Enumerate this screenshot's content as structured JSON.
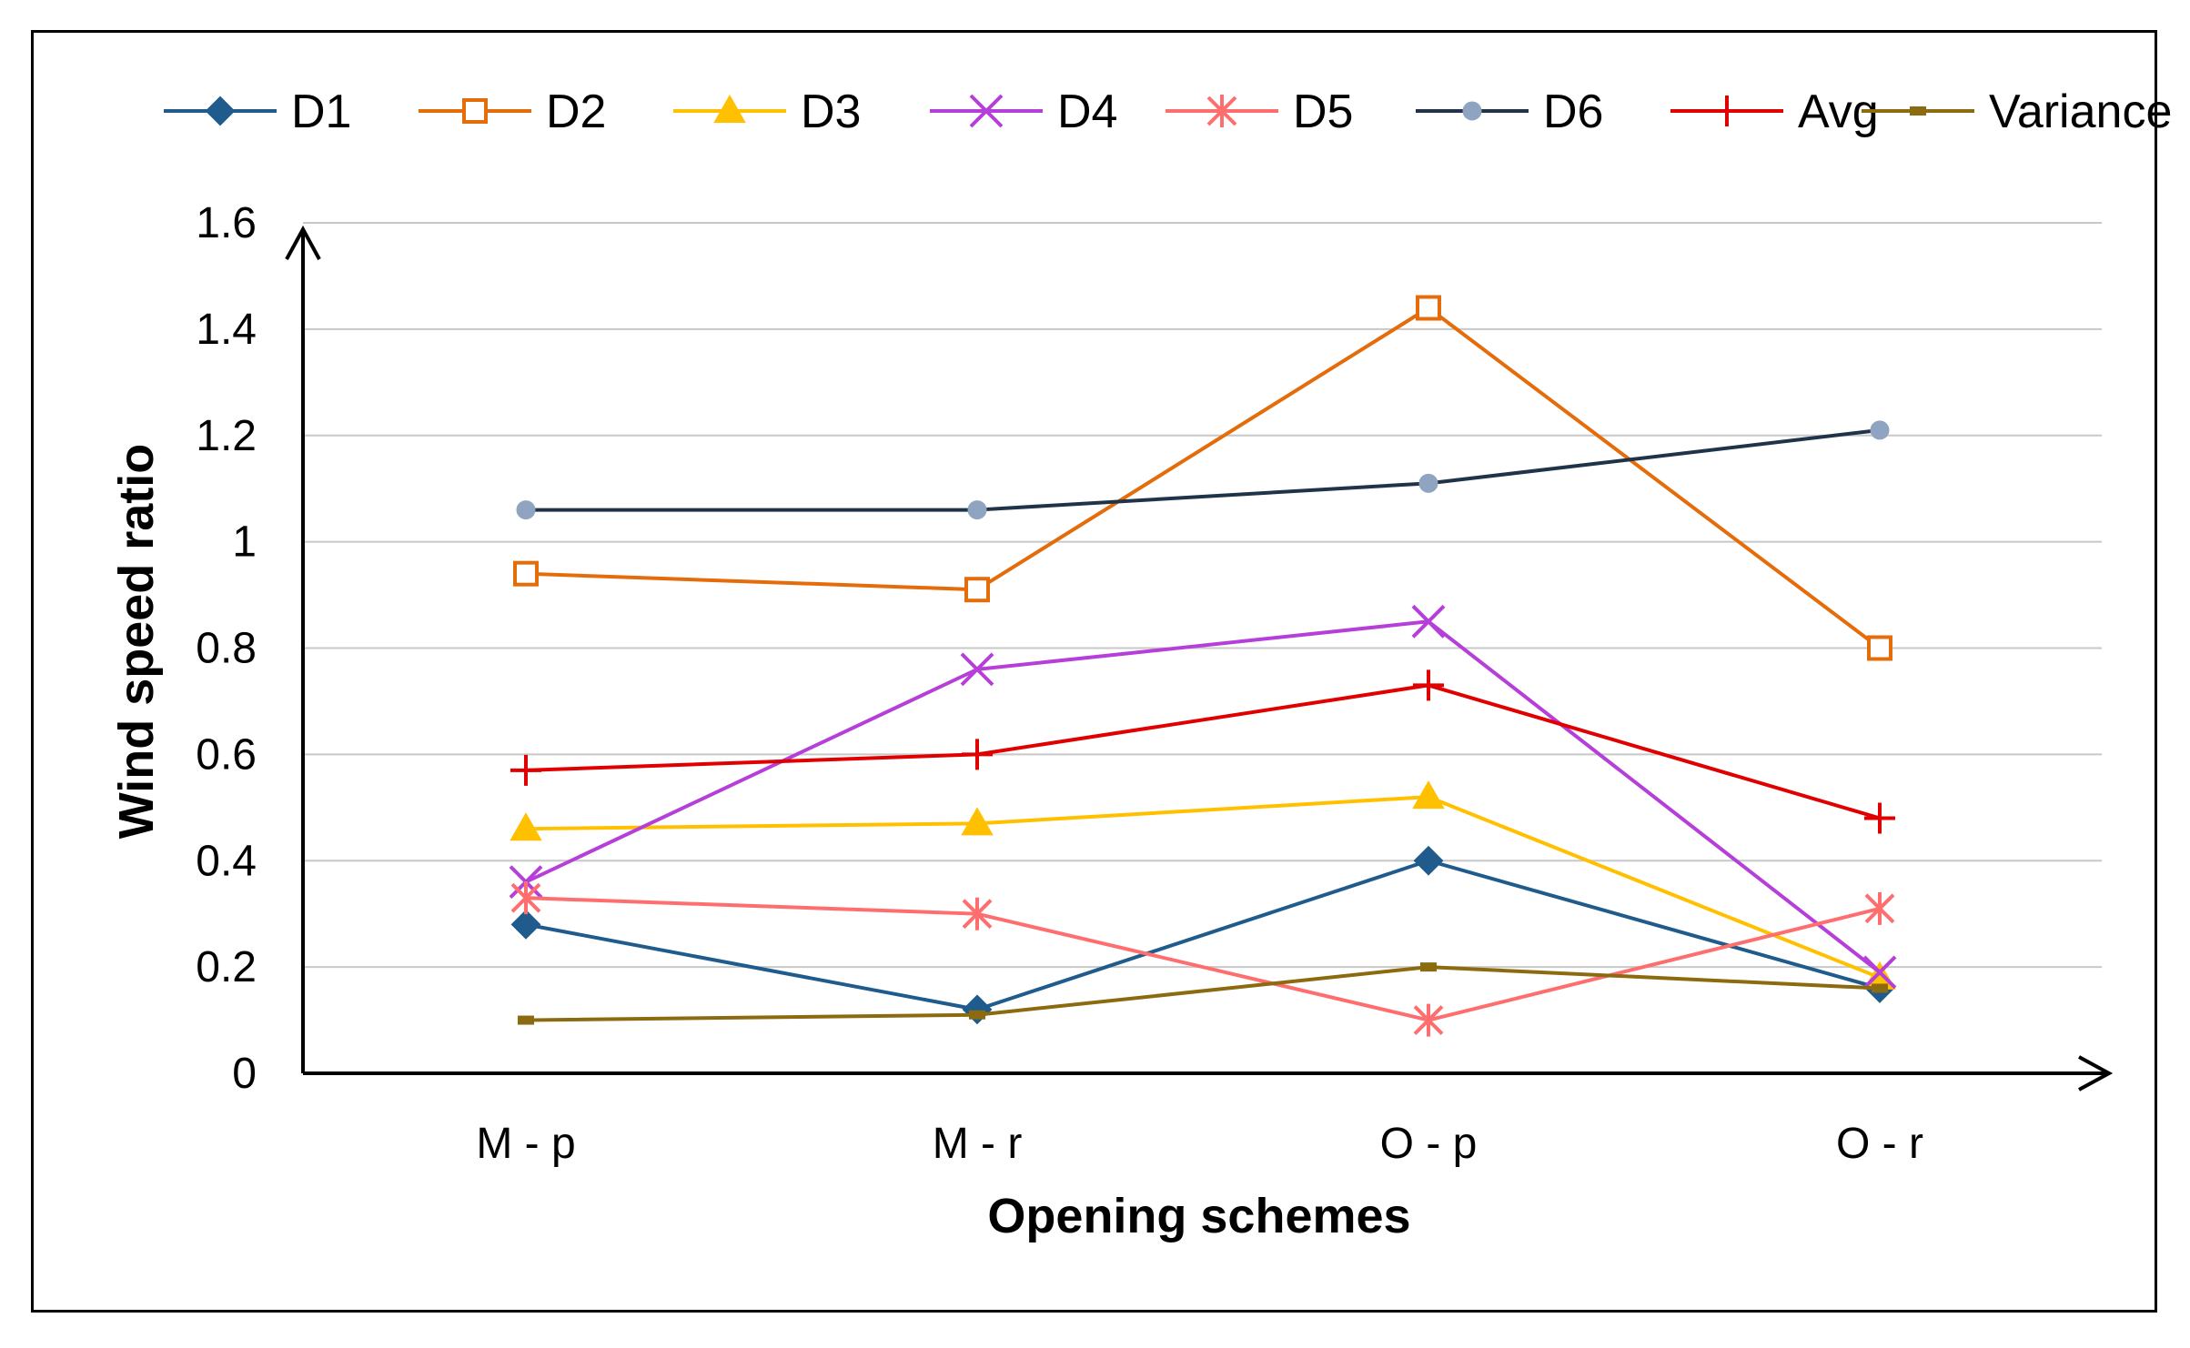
{
  "chart_data": {
    "type": "line",
    "title": "",
    "xlabel": "Opening schemes",
    "ylabel": "Wind speed ratio",
    "categories": [
      "M - p",
      "M - r",
      "O - p",
      "O - r"
    ],
    "ylim": [
      0,
      1.6
    ],
    "yticks": [
      "0",
      "0.2",
      "0.4",
      "0.6",
      "0.8",
      "1",
      "1.2",
      "1.4",
      "1.6"
    ],
    "grid": "horizontal",
    "legend": "top",
    "series": [
      {
        "name": "D1",
        "values": [
          0.28,
          0.12,
          0.4,
          0.16
        ],
        "color": "#1F5B8C",
        "marker": "diamond"
      },
      {
        "name": "D2",
        "values": [
          0.94,
          0.91,
          1.44,
          0.8
        ],
        "color": "#E46C0A",
        "marker": "square-open"
      },
      {
        "name": "D3",
        "values": [
          0.46,
          0.47,
          0.52,
          0.18
        ],
        "color": "#FFC000",
        "marker": "triangle"
      },
      {
        "name": "D4",
        "values": [
          0.36,
          0.76,
          0.85,
          0.19
        ],
        "color": "#B53FD8",
        "marker": "x"
      },
      {
        "name": "D5",
        "values": [
          0.33,
          0.3,
          0.1,
          0.31
        ],
        "color": "#FF6E6E",
        "marker": "asterisk"
      },
      {
        "name": "D6",
        "values": [
          1.06,
          1.06,
          1.11,
          1.21
        ],
        "color": "#1F3349",
        "marker": "circle",
        "markerColor": "#8EA4C0"
      },
      {
        "name": "Avg",
        "values": [
          0.57,
          0.6,
          0.73,
          0.48
        ],
        "color": "#E00000",
        "marker": "plus"
      },
      {
        "name": "Variance",
        "values": [
          0.1,
          0.11,
          0.2,
          0.16
        ],
        "color": "#8B6A10",
        "marker": "dash"
      }
    ]
  }
}
